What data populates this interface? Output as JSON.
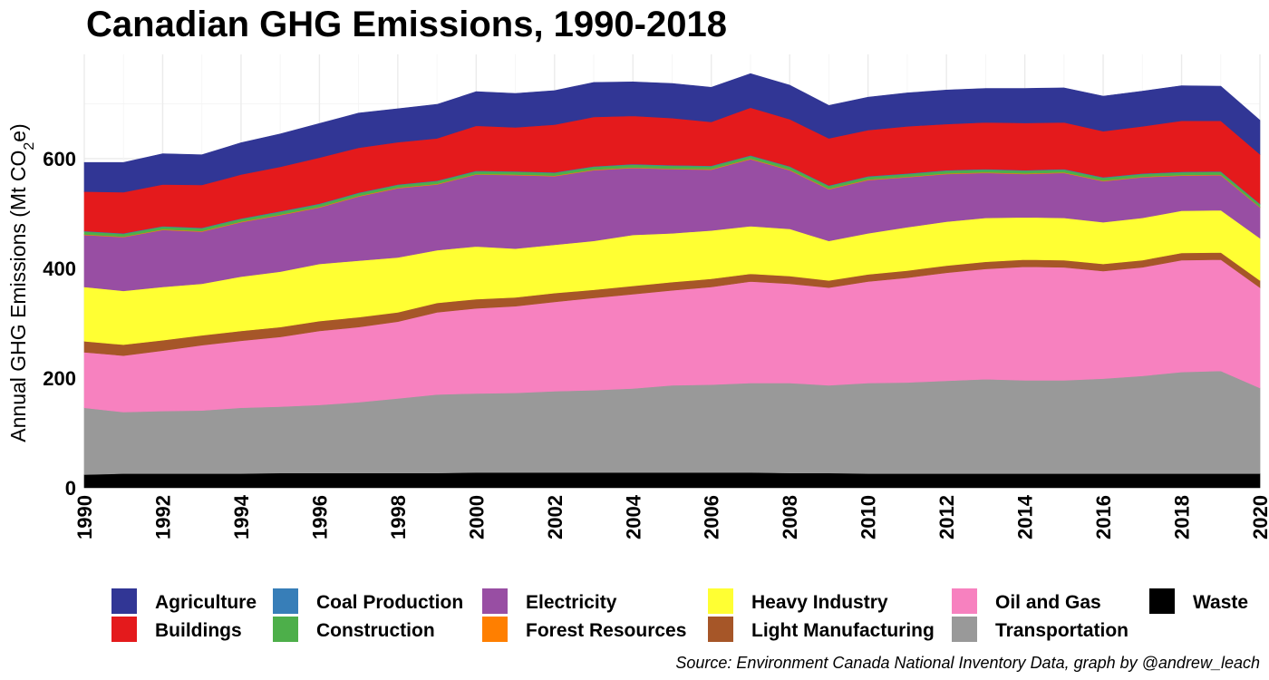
{
  "chart_data": {
    "type": "area",
    "stacked": true,
    "title": "Canadian GHG Emissions, 1990-2018",
    "ylabel": {
      "main": "Annual GHG Emissions  (Mt CO",
      "sub": "2",
      "end": "e)"
    },
    "xlabel": "",
    "source": "Source: Environment Canada National Inventory Data, graph by @andrew_leach",
    "xlim": [
      1990,
      2020
    ],
    "ylim": [
      0,
      790
    ],
    "x_ticks": [
      "1990",
      "1992",
      "1994",
      "1996",
      "1998",
      "2000",
      "2002",
      "2004",
      "2006",
      "2008",
      "2010",
      "2012",
      "2014",
      "2016",
      "2018",
      "2020"
    ],
    "y_ticks": [
      "0",
      "200",
      "400",
      "600"
    ],
    "grid": true,
    "legend_position": "bottom",
    "x": [
      1990,
      1991,
      1992,
      1993,
      1994,
      1995,
      1996,
      1997,
      1998,
      1999,
      2000,
      2001,
      2002,
      2003,
      2004,
      2005,
      2006,
      2007,
      2008,
      2009,
      2010,
      2011,
      2012,
      2013,
      2014,
      2015,
      2016,
      2017,
      2018,
      2019,
      2020
    ],
    "series": [
      {
        "name": "Waste",
        "color": "#000000",
        "values": [
          24,
          26,
          26,
          26,
          26,
          27,
          27,
          27,
          27,
          27,
          28,
          28,
          28,
          28,
          28,
          28,
          28,
          28,
          27,
          27,
          26,
          26,
          26,
          26,
          26,
          26,
          26,
          26,
          26,
          26,
          26
        ]
      },
      {
        "name": "Transportation",
        "color": "#999999",
        "values": [
          122,
          112,
          114,
          115,
          120,
          121,
          124,
          129,
          136,
          143,
          144,
          145,
          148,
          150,
          153,
          159,
          160,
          163,
          164,
          160,
          165,
          166,
          169,
          172,
          170,
          170,
          173,
          178,
          185,
          187,
          156
        ]
      },
      {
        "name": "Oil and Gas",
        "color": "#f781bf",
        "values": [
          101,
          103,
          110,
          119,
          122,
          127,
          135,
          137,
          140,
          150,
          155,
          158,
          163,
          168,
          172,
          173,
          178,
          185,
          181,
          178,
          185,
          191,
          197,
          201,
          207,
          206,
          196,
          198,
          204,
          203,
          183
        ]
      },
      {
        "name": "Light Manufacturing",
        "color": "#a65628",
        "values": [
          20,
          20,
          19,
          18,
          18,
          18,
          18,
          18,
          17,
          17,
          17,
          16,
          16,
          15,
          15,
          15,
          15,
          14,
          14,
          13,
          13,
          13,
          13,
          13,
          13,
          13,
          13,
          13,
          13,
          13,
          13
        ]
      },
      {
        "name": "Heavy Industry",
        "color": "#ffff33",
        "values": [
          99,
          98,
          97,
          94,
          99,
          101,
          104,
          103,
          100,
          96,
          96,
          89,
          88,
          89,
          93,
          89,
          88,
          87,
          86,
          72,
          75,
          79,
          80,
          80,
          77,
          77,
          76,
          77,
          77,
          77,
          77
        ]
      },
      {
        "name": "Electricity",
        "color": "#984ea3",
        "values": [
          95,
          98,
          104,
          95,
          99,
          103,
          103,
          117,
          126,
          120,
          131,
          134,
          125,
          129,
          122,
          117,
          111,
          122,
          107,
          94,
          97,
          91,
          87,
          82,
          79,
          82,
          75,
          74,
          64,
          64,
          56
        ]
      },
      {
        "name": "Forest Resources",
        "color": "#ff7f00",
        "values": [
          1,
          1,
          1,
          1,
          1,
          1,
          1,
          1,
          1,
          1,
          1,
          1,
          1,
          1,
          1,
          1,
          1,
          1,
          1,
          1,
          1,
          1,
          1,
          1,
          1,
          1,
          1,
          1,
          1,
          1,
          1
        ]
      },
      {
        "name": "Construction",
        "color": "#4daf4a",
        "values": [
          5,
          5,
          5,
          5,
          5,
          5,
          5,
          5,
          5,
          5,
          5,
          5,
          5,
          5,
          5,
          5,
          5,
          5,
          5,
          5,
          5,
          5,
          5,
          5,
          5,
          5,
          5,
          5,
          5,
          5,
          5
        ]
      },
      {
        "name": "Coal Production",
        "color": "#377eb8",
        "values": [
          1,
          1,
          1,
          1,
          1,
          1,
          1,
          1,
          1,
          1,
          1,
          1,
          1,
          1,
          1,
          1,
          1,
          1,
          1,
          1,
          1,
          1,
          1,
          1,
          1,
          1,
          1,
          1,
          1,
          1,
          1
        ]
      },
      {
        "name": "Buildings",
        "color": "#e41a1c",
        "values": [
          72,
          75,
          76,
          78,
          80,
          81,
          84,
          82,
          77,
          77,
          82,
          80,
          87,
          90,
          88,
          86,
          80,
          87,
          86,
          86,
          84,
          86,
          84,
          85,
          86,
          85,
          84,
          86,
          93,
          92,
          90
        ]
      },
      {
        "name": "Agriculture",
        "color": "#313695",
        "values": [
          53,
          54,
          56,
          55,
          58,
          60,
          62,
          63,
          61,
          62,
          62,
          62,
          62,
          63,
          62,
          63,
          63,
          62,
          62,
          60,
          60,
          61,
          62,
          62,
          63,
          63,
          64,
          64,
          64,
          63,
          62
        ]
      }
    ],
    "legend": [
      {
        "name": "Agriculture",
        "color": "#313695"
      },
      {
        "name": "Buildings",
        "color": "#e41a1c"
      },
      {
        "name": "Coal Production",
        "color": "#377eb8"
      },
      {
        "name": "Construction",
        "color": "#4daf4a"
      },
      {
        "name": "Electricity",
        "color": "#984ea3"
      },
      {
        "name": "Forest Resources",
        "color": "#ff7f00"
      },
      {
        "name": "Heavy Industry",
        "color": "#ffff33"
      },
      {
        "name": "Light Manufacturing",
        "color": "#a65628"
      },
      {
        "name": "Oil and Gas",
        "color": "#f781bf"
      },
      {
        "name": "Transportation",
        "color": "#999999"
      },
      {
        "name": "Waste",
        "color": "#000000"
      }
    ]
  }
}
